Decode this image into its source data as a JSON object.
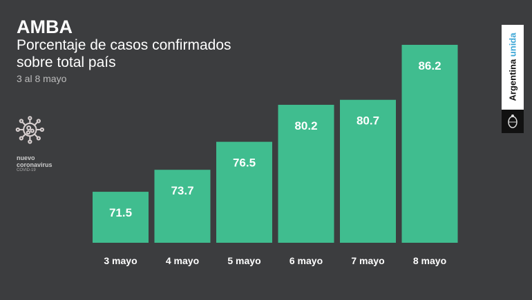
{
  "header": {
    "title": "AMBA",
    "subtitle": "Porcentaje de casos confirmados sobre total país",
    "date_range": "3 al 8 mayo"
  },
  "badge": {
    "line1": "nuevo",
    "line2": "coronavirus",
    "line3": "COVID-19"
  },
  "brand": {
    "word1": "Argentina",
    "word2": "unida"
  },
  "colors": {
    "bar": "#40bd8f",
    "background": "#3c3d3f"
  },
  "chart_data": {
    "type": "bar",
    "title": "Porcentaje de casos confirmados sobre total país",
    "categories": [
      "3 mayo",
      "4 mayo",
      "5 mayo",
      "6 mayo",
      "7 mayo",
      "8 mayo"
    ],
    "values": [
      71.5,
      73.7,
      76.5,
      80.2,
      80.7,
      86.2
    ],
    "value_labels": [
      "71.5",
      "73.7",
      "76.5",
      "80.2",
      "80.7",
      "86.2"
    ],
    "xlabel": "",
    "ylabel": "",
    "ylim": [
      66.4,
      86.2
    ],
    "grid": false
  }
}
